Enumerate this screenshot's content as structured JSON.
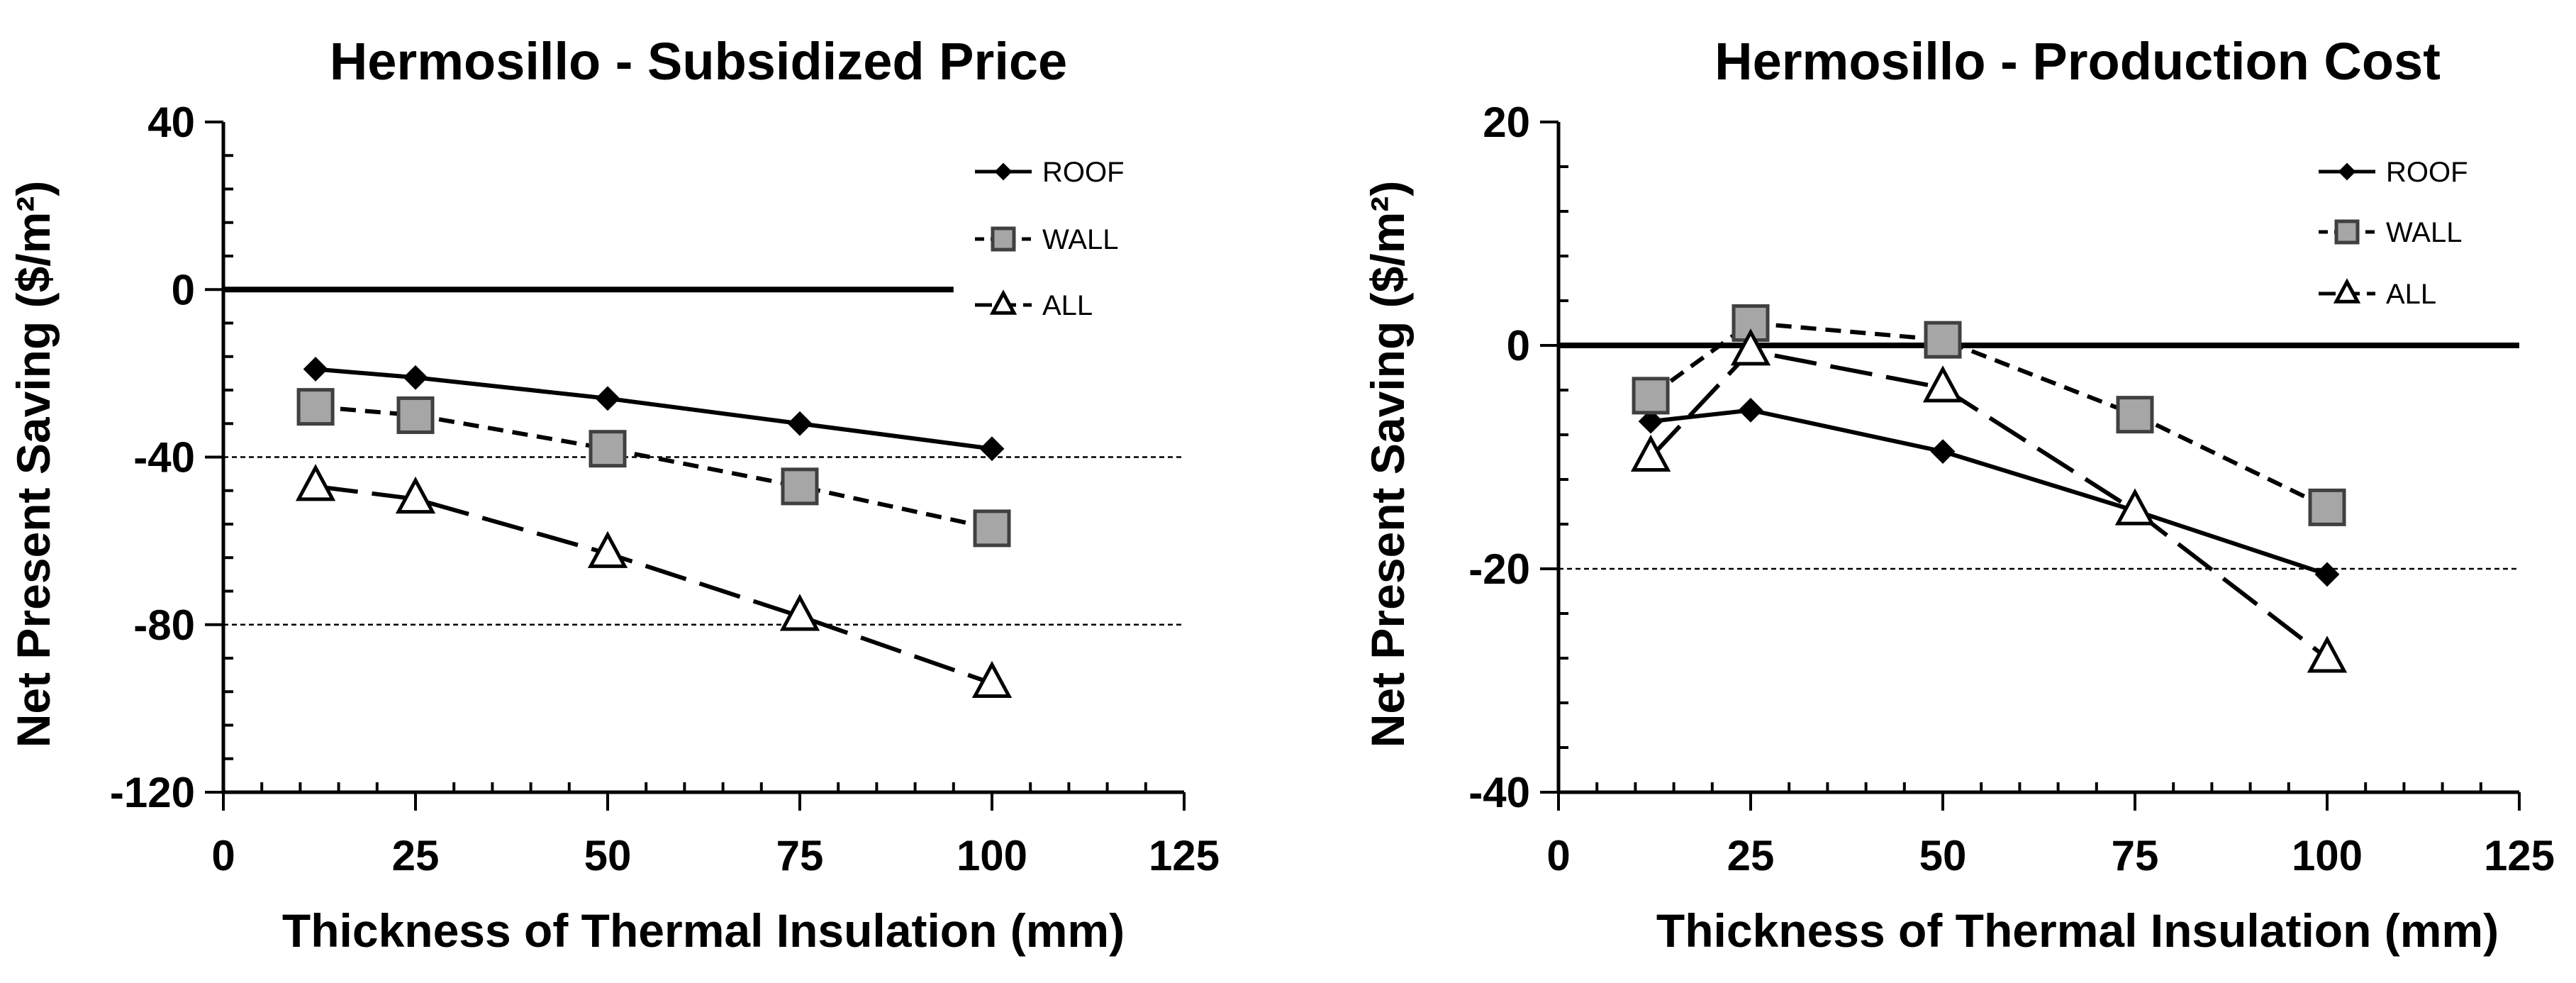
{
  "chart_data": [
    {
      "type": "line",
      "title": "Hermosillo - Subsidized Price",
      "xlabel": "Thickness of Thermal Insulation  (mm)",
      "ylabel": "Net Present Saving  ($/m²)",
      "xlim": [
        0,
        125
      ],
      "ylim": [
        -120,
        40
      ],
      "xticks": [
        0,
        25,
        50,
        75,
        100,
        125
      ],
      "yticks": [
        40,
        0,
        -40,
        -80,
        -120
      ],
      "xtick_labels": [
        "0",
        "25",
        "50",
        "75",
        "100",
        "125"
      ],
      "ytick_labels": [
        "40",
        "0",
        "-40",
        "-80",
        "-120"
      ],
      "reference_lines": [
        {
          "y": 0,
          "style": "solid",
          "x_end": 95
        },
        {
          "y": -40,
          "style": "dotted"
        },
        {
          "y": -80,
          "style": "dotted"
        }
      ],
      "legend_position": "top-right",
      "series": [
        {
          "name": "ROOF",
          "marker": "diamond",
          "line": "solid",
          "x": [
            12,
            25,
            50,
            75,
            100
          ],
          "values": [
            -19,
            -21,
            -26,
            -32,
            -38
          ]
        },
        {
          "name": "WALL",
          "marker": "square",
          "line": "dashed",
          "x": [
            12,
            25,
            50,
            75,
            100
          ],
          "values": [
            -28,
            -30,
            -38,
            -47,
            -57
          ]
        },
        {
          "name": "ALL",
          "marker": "triangle",
          "line": "longdash",
          "x": [
            12,
            25,
            50,
            75,
            100
          ],
          "values": [
            -47,
            -50,
            -63,
            -78,
            -94
          ]
        }
      ]
    },
    {
      "type": "line",
      "title": "Hermosillo - Production Cost",
      "xlabel": "Thickness of Thermal Insulation  (mm)",
      "ylabel": "Net Present Saving  ($/m²)",
      "xlim": [
        0,
        125
      ],
      "ylim": [
        -40,
        20
      ],
      "xticks": [
        0,
        25,
        50,
        75,
        100,
        125
      ],
      "yticks": [
        20,
        0,
        -20,
        -40
      ],
      "xtick_labels": [
        "0",
        "25",
        "50",
        "75",
        "100",
        "125"
      ],
      "ytick_labels": [
        "20",
        "0",
        "-20",
        "-40"
      ],
      "reference_lines": [
        {
          "y": 0,
          "style": "solid"
        },
        {
          "y": -20,
          "style": "dotted"
        }
      ],
      "legend_position": "top-right",
      "series": [
        {
          "name": "ROOF",
          "marker": "diamond",
          "line": "solid",
          "x": [
            12,
            25,
            50,
            75,
            100
          ],
          "values": [
            -6.8,
            -5.8,
            -9.5,
            -14.8,
            -20.5
          ]
        },
        {
          "name": "WALL",
          "marker": "square",
          "line": "dashed",
          "x": [
            12,
            25,
            50,
            75,
            100
          ],
          "values": [
            -4.5,
            2.0,
            0.5,
            -6.2,
            -14.5
          ]
        },
        {
          "name": "ALL",
          "marker": "triangle",
          "line": "longdash",
          "x": [
            12,
            25,
            50,
            75,
            100
          ],
          "values": [
            -10.0,
            -0.5,
            -3.8,
            -14.8,
            -28.0
          ]
        }
      ]
    }
  ]
}
